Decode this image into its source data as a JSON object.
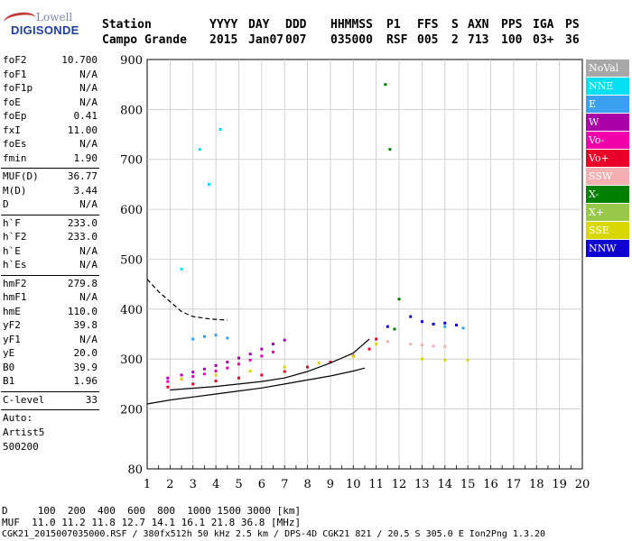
{
  "logo": {
    "line1": "Lowell",
    "line2": "DIGISONDE"
  },
  "header": {
    "labels": [
      "Station",
      "YYYY",
      "DAY",
      "DDD",
      "HHMMSS",
      "P1",
      "FFS",
      "S",
      "AXN",
      "PPS",
      "IGA",
      "PS"
    ],
    "values": [
      "Campo Grande",
      "2015",
      "Jan07",
      "007",
      "035000",
      "RSF",
      "005",
      "2",
      "713",
      "100",
      "03+",
      "36"
    ]
  },
  "params": {
    "group1": [
      [
        "foF2",
        "10.700"
      ],
      [
        "foF1",
        "N/A"
      ],
      [
        "foF1p",
        "N/A"
      ],
      [
        "foE",
        "N/A"
      ],
      [
        "foEp",
        "0.41"
      ],
      [
        "fxI",
        "11.00"
      ],
      [
        "foEs",
        "N/A"
      ],
      [
        "fmin",
        "1.90"
      ]
    ],
    "group2": [
      [
        "MUF(D)",
        "36.77"
      ],
      [
        "M(D)",
        "3.44"
      ],
      [
        "D",
        "N/A"
      ]
    ],
    "group3": [
      [
        "h`F",
        "233.0"
      ],
      [
        "h`F2",
        "233.0"
      ],
      [
        "h`E",
        "N/A"
      ],
      [
        "h`Es",
        "N/A"
      ]
    ],
    "group4": [
      [
        "hmF2",
        "279.8"
      ],
      [
        "hmF1",
        "N/A"
      ],
      [
        "hmE",
        "110.0"
      ],
      [
        "yF2",
        "39.8"
      ],
      [
        "yF1",
        "N/A"
      ],
      [
        "yE",
        "20.0"
      ],
      [
        "B0",
        "39.9"
      ],
      [
        "B1",
        "1.96"
      ]
    ],
    "group5": [
      [
        "C-level",
        "33"
      ]
    ],
    "auto": [
      "Auto:",
      "Artist5",
      "500200"
    ]
  },
  "legend": [
    {
      "label": "NoVal",
      "color": "#a8a8a8"
    },
    {
      "label": "NNE",
      "color": "#00e0f0"
    },
    {
      "label": "E",
      "color": "#3aa0f0"
    },
    {
      "label": "W",
      "color": "#a800a8"
    },
    {
      "label": "Vo-",
      "color": "#f000a8"
    },
    {
      "label": "Vo+",
      "color": "#e80028"
    },
    {
      "label": "SSW",
      "color": "#f4b0b0"
    },
    {
      "label": "X-",
      "color": "#008000"
    },
    {
      "label": "X+",
      "color": "#98c848"
    },
    {
      "label": "SSE",
      "color": "#d8d800"
    },
    {
      "label": "NNW",
      "color": "#1000d0"
    }
  ],
  "bottom": {
    "line1": "D     100  200  400  600  800  1000 1500 3000 [km]",
    "line2": "MUF  11.0 11.2 11.8 12.7 14.1 16.1 21.8 36.8 [MHz]",
    "line3": "CGK21_2015007035000.RSF / 380fx512h 50 kHz 2.5 km / DPS-4D CGK21 821 / 20.5 S 305.0 E Ion2Png 1.3.20"
  },
  "chart_data": {
    "type": "scatter",
    "title": "",
    "xlabel": "",
    "ylabel": "",
    "xlim": [
      1,
      20
    ],
    "ylim": [
      80,
      900
    ],
    "x_ticks": [
      1,
      2,
      3,
      4,
      5,
      6,
      7,
      8,
      9,
      10,
      11,
      12,
      13,
      14,
      15,
      16,
      17,
      18,
      19,
      20
    ],
    "y_ticks": [
      80,
      200,
      300,
      400,
      500,
      600,
      700,
      800,
      900
    ],
    "grid": true,
    "legend_position": "right",
    "series": [
      {
        "name": "W",
        "points": [
          [
            1.9,
            262
          ],
          [
            2.5,
            268
          ],
          [
            3.0,
            274
          ],
          [
            3.5,
            280
          ],
          [
            4.0,
            287
          ],
          [
            4.5,
            294
          ],
          [
            5.0,
            302
          ],
          [
            5.5,
            310
          ],
          [
            6.0,
            320
          ],
          [
            6.5,
            330
          ],
          [
            7.0,
            338
          ]
        ]
      },
      {
        "name": "Vo-",
        "points": [
          [
            1.9,
            255
          ],
          [
            2.5,
            260
          ],
          [
            3.0,
            265
          ],
          [
            3.5,
            270
          ],
          [
            4.0,
            276
          ],
          [
            4.5,
            282
          ],
          [
            5.0,
            290
          ],
          [
            5.5,
            298
          ],
          [
            6.0,
            306
          ],
          [
            6.5,
            314
          ]
        ]
      },
      {
        "name": "Vo+",
        "points": [
          [
            1.9,
            244
          ],
          [
            3.0,
            250
          ],
          [
            4.0,
            256
          ],
          [
            5.0,
            262
          ],
          [
            6.0,
            268
          ],
          [
            7.0,
            275
          ],
          [
            8.0,
            284
          ],
          [
            9.0,
            294
          ],
          [
            10.0,
            306
          ],
          [
            10.7,
            320
          ],
          [
            11.0,
            340
          ]
        ]
      },
      {
        "name": "SSE",
        "points": [
          [
            2.5,
            260
          ],
          [
            4.0,
            268
          ],
          [
            5.5,
            276
          ],
          [
            7.0,
            284
          ],
          [
            8.5,
            292
          ],
          [
            10.0,
            305
          ],
          [
            11.0,
            330
          ],
          [
            13.0,
            300
          ],
          [
            14.0,
            298
          ],
          [
            15.0,
            298
          ]
        ]
      },
      {
        "name": "E",
        "points": [
          [
            3.0,
            340
          ],
          [
            3.5,
            345
          ],
          [
            4.0,
            348
          ],
          [
            4.5,
            342
          ],
          [
            13.5,
            370
          ],
          [
            14.0,
            365
          ],
          [
            14.8,
            362
          ]
        ]
      },
      {
        "name": "NNW",
        "points": [
          [
            11.5,
            365
          ],
          [
            12.5,
            385
          ],
          [
            13.0,
            375
          ],
          [
            13.5,
            370
          ],
          [
            14.0,
            372
          ],
          [
            14.5,
            368
          ]
        ]
      },
      {
        "name": "SSW",
        "points": [
          [
            11.5,
            335
          ],
          [
            12.5,
            330
          ],
          [
            13.0,
            328
          ],
          [
            13.5,
            326
          ],
          [
            14.0,
            325
          ]
        ]
      },
      {
        "name": "X-",
        "points": [
          [
            11.4,
            850
          ],
          [
            11.6,
            720
          ],
          [
            12.0,
            420
          ],
          [
            11.8,
            360
          ]
        ]
      },
      {
        "name": "NNE",
        "points": [
          [
            3.3,
            720
          ],
          [
            3.7,
            650
          ],
          [
            4.2,
            760
          ],
          [
            2.5,
            480
          ]
        ]
      },
      {
        "name": "trace_lower",
        "points": [
          [
            1.0,
            210
          ],
          [
            2.0,
            218
          ],
          [
            3.0,
            224
          ],
          [
            4.0,
            230
          ],
          [
            5.0,
            236
          ],
          [
            6.0,
            242
          ],
          [
            7.0,
            250
          ],
          [
            8.0,
            258
          ],
          [
            9.0,
            266
          ],
          [
            10.0,
            276
          ],
          [
            10.5,
            282
          ]
        ]
      },
      {
        "name": "trace_profile",
        "points": [
          [
            2.0,
            238
          ],
          [
            4.0,
            245
          ],
          [
            6.0,
            255
          ],
          [
            7.0,
            262
          ],
          [
            8.0,
            275
          ],
          [
            9.0,
            292
          ],
          [
            10.0,
            312
          ],
          [
            10.7,
            340
          ]
        ]
      },
      {
        "name": "trace_dashed",
        "points": [
          [
            1.0,
            460
          ],
          [
            1.5,
            435
          ],
          [
            2.0,
            415
          ],
          [
            2.5,
            395
          ],
          [
            3.0,
            385
          ],
          [
            3.8,
            380
          ],
          [
            4.5,
            378
          ]
        ]
      }
    ]
  }
}
